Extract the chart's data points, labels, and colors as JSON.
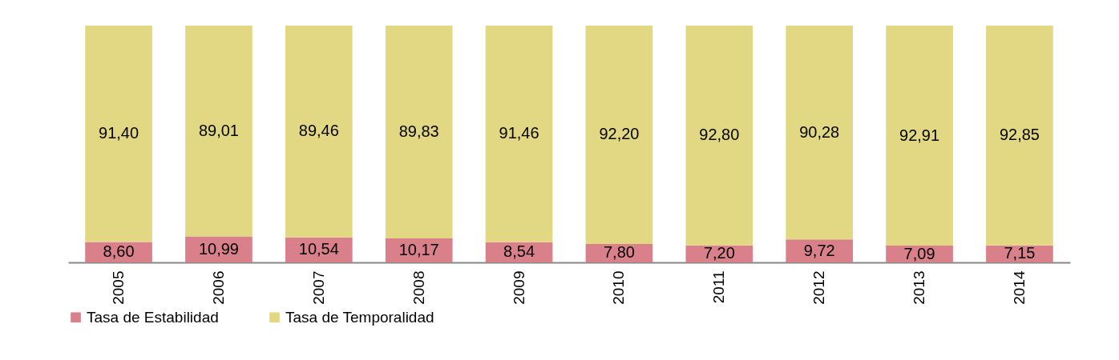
{
  "chart_data": {
    "type": "bar",
    "stacked": true,
    "categories": [
      "2005",
      "2006",
      "2007",
      "2008",
      "2009",
      "2010",
      "2011",
      "2012",
      "2013",
      "2014"
    ],
    "series": [
      {
        "name": "Tasa de Estabilidad",
        "color": "#d9808a",
        "values": [
          8.6,
          10.99,
          10.54,
          10.17,
          8.54,
          7.8,
          7.2,
          9.72,
          7.09,
          7.15
        ],
        "value_labels": [
          "8,60",
          "10,99",
          "10,54",
          "10,17",
          "8,54",
          "7,80",
          "7,20",
          "9,72",
          "7,09",
          "7,15"
        ]
      },
      {
        "name": "Tasa de Temporalidad",
        "color": "#e2d884",
        "values": [
          91.4,
          89.01,
          89.46,
          89.83,
          91.46,
          92.2,
          92.8,
          90.28,
          92.91,
          92.85
        ],
        "value_labels": [
          "91,40",
          "89,01",
          "89,46",
          "89,83",
          "91,46",
          "92,20",
          "92,80",
          "90,28",
          "92,91",
          "92,85"
        ]
      }
    ],
    "ylim": [
      0,
      100
    ],
    "tick_labels": "x",
    "legend": "bottom",
    "grid": false
  }
}
